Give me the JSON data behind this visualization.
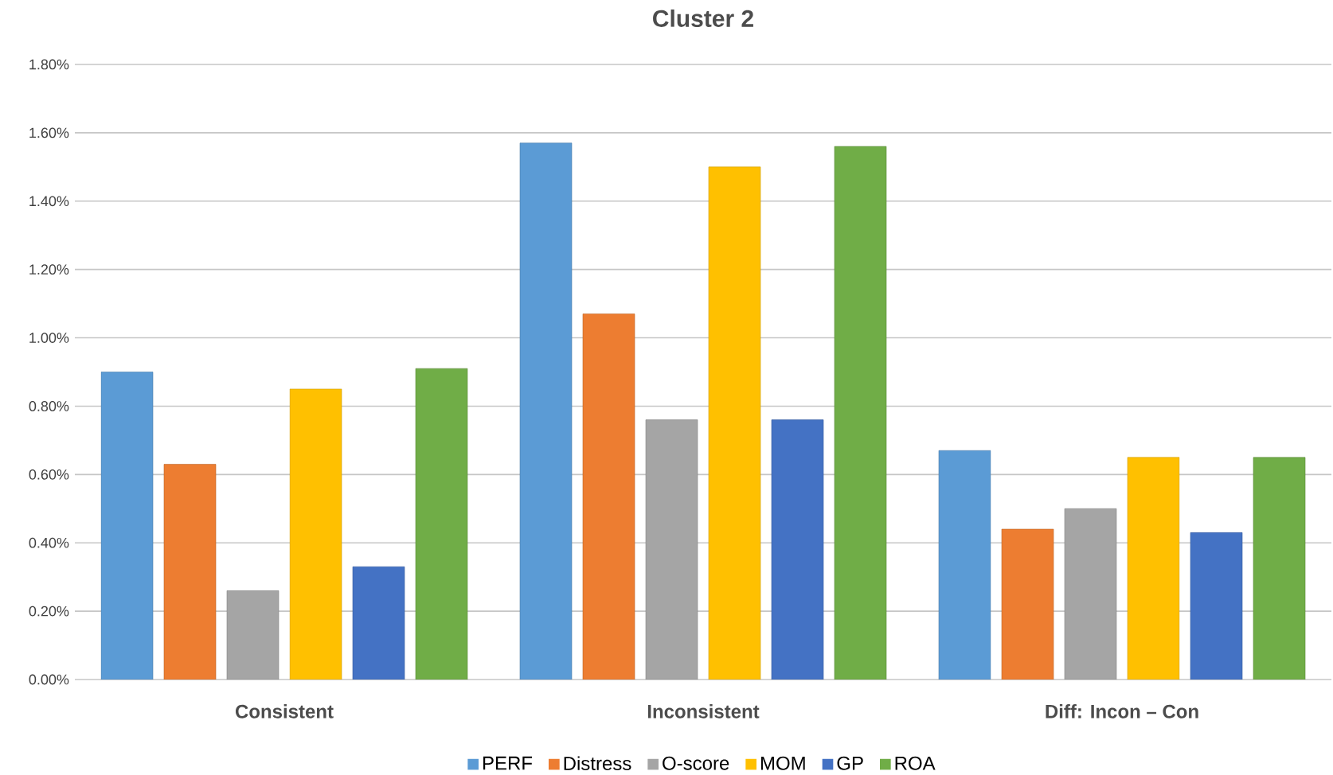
{
  "chart_data": {
    "type": "bar",
    "title": "Cluster 2",
    "categories": [
      "Consistent",
      "Inconsistent",
      "Diff: Incon – Con"
    ],
    "series": [
      {
        "name": "PERF",
        "color": "#5b9bd5",
        "values": [
          0.9,
          1.57,
          0.67
        ]
      },
      {
        "name": "Distress",
        "color": "#ed7d31",
        "values": [
          0.63,
          1.07,
          0.44
        ]
      },
      {
        "name": "O-score",
        "color": "#a5a5a5",
        "values": [
          0.26,
          0.76,
          0.5
        ]
      },
      {
        "name": "MOM",
        "color": "#ffc000",
        "values": [
          0.85,
          1.5,
          0.65
        ]
      },
      {
        "name": "GP",
        "color": "#4472c4",
        "values": [
          0.33,
          0.76,
          0.43
        ]
      },
      {
        "name": "ROA",
        "color": "#70ad47",
        "values": [
          0.91,
          1.56,
          0.65
        ]
      }
    ],
    "ylim": [
      0,
      1.8
    ],
    "yticks": [
      {
        "value": 0,
        "label": "0.00%"
      },
      {
        "value": 0.2,
        "label": "0.20%"
      },
      {
        "value": 0.4,
        "label": "0.40%"
      },
      {
        "value": 0.6,
        "label": "0.60%"
      },
      {
        "value": 0.8,
        "label": "0.80%"
      },
      {
        "value": 1.0,
        "label": "1.00%"
      },
      {
        "value": 1.2,
        "label": "1.20%"
      },
      {
        "value": 1.4,
        "label": "1.40%"
      },
      {
        "value": 1.6,
        "label": "1.60%"
      },
      {
        "value": 1.8,
        "label": "1.80%"
      }
    ],
    "grid": "y",
    "legend": "bottom"
  }
}
